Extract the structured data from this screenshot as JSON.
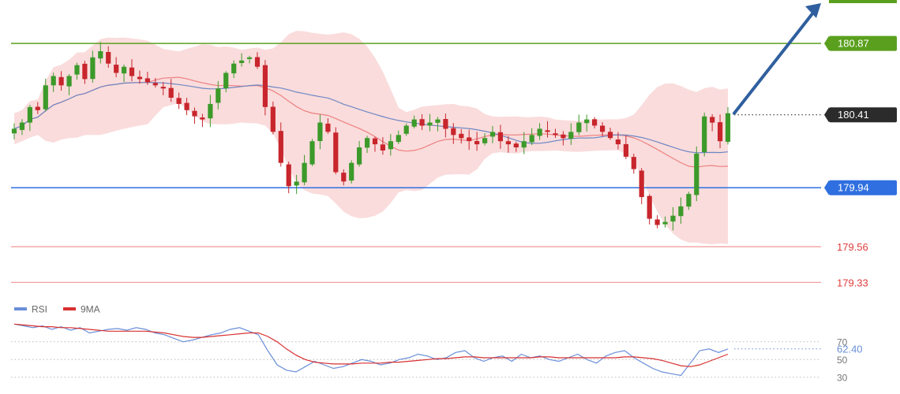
{
  "chart_data": [
    {
      "type": "candlestick",
      "ylim": [
        179.22,
        181.15
      ],
      "colors": {
        "up": "#3c9a2a",
        "down": "#c8252c",
        "band_fill": "#f8d0d0",
        "ma_fast": "#ee8080",
        "ma_slow": "#6d87c4",
        "arrow": "#2f5f9e"
      },
      "levels": [
        {
          "value": 180.87,
          "label": "180.87",
          "color": "#5aa01e",
          "style": "solid-badge"
        },
        {
          "value": 180.41,
          "label": "180.41",
          "color": "#333333",
          "style": "dotted-badge"
        },
        {
          "value": 179.94,
          "label": "179.94",
          "color": "#2f6fe0",
          "style": "solid-badge"
        },
        {
          "value": 179.56,
          "label": "179.56",
          "color": "#f2a0a0",
          "style": "text"
        },
        {
          "value": 179.33,
          "label": "179.33",
          "color": "#f2a0a0",
          "style": "text"
        }
      ],
      "close": [
        180.32,
        180.36,
        180.46,
        180.44,
        180.6,
        180.66,
        180.6,
        180.66,
        180.73,
        180.64,
        180.78,
        180.82,
        180.74,
        180.68,
        180.72,
        180.66,
        180.64,
        180.62,
        180.6,
        180.58,
        180.52,
        180.48,
        180.44,
        180.4,
        180.38,
        180.48,
        180.58,
        180.68,
        180.74,
        180.76,
        180.78,
        180.72,
        180.46,
        180.3,
        180.1,
        179.95,
        179.98,
        180.1,
        180.24,
        180.36,
        180.3,
        180.04,
        179.98,
        180.1,
        180.2,
        180.26,
        180.22,
        180.18,
        180.24,
        180.28,
        180.34,
        180.38,
        180.34,
        180.36,
        180.38,
        180.32,
        180.28,
        180.26,
        180.24,
        180.22,
        180.26,
        180.3,
        180.24,
        180.22,
        180.2,
        180.24,
        180.28,
        180.32,
        180.3,
        180.28,
        180.26,
        180.3,
        180.36,
        180.38,
        180.34,
        180.3,
        180.26,
        180.22,
        180.14,
        180.06,
        179.88,
        179.74,
        179.7,
        179.72,
        179.76,
        179.82,
        179.9,
        180.16,
        180.4,
        180.36,
        180.24,
        180.42
      ]
    },
    {
      "type": "line",
      "legend": [
        "RSI",
        "9MA"
      ],
      "ylim": [
        20,
        100
      ],
      "ticks": [
        {
          "value": 70,
          "label": "70"
        },
        {
          "value": 50,
          "label": "50"
        },
        {
          "value": 30,
          "label": "30"
        }
      ],
      "last_value_label": "62.40",
      "series": [
        {
          "name": "RSI",
          "color": "#6a8fd8",
          "values": [
            90,
            88,
            86,
            88,
            84,
            87,
            83,
            86,
            80,
            82,
            84,
            85,
            83,
            86,
            84,
            80,
            78,
            74,
            70,
            72,
            75,
            78,
            80,
            84,
            86,
            82,
            78,
            60,
            44,
            38,
            36,
            42,
            48,
            44,
            40,
            42,
            46,
            50,
            48,
            44,
            46,
            50,
            52,
            56,
            54,
            50,
            52,
            58,
            60,
            52,
            48,
            52,
            54,
            48,
            56,
            52,
            54,
            50,
            48,
            52,
            56,
            50,
            46,
            54,
            58,
            60,
            52,
            46,
            40,
            36,
            34,
            32,
            46,
            60,
            62,
            58,
            62
          ]
        },
        {
          "name": "9MA",
          "color": "#d83030",
          "values": [
            90,
            89,
            88,
            87,
            87,
            86,
            86,
            85,
            84,
            83,
            82,
            82,
            82,
            82,
            82,
            81,
            80,
            78,
            76,
            75,
            75,
            76,
            77,
            78,
            79,
            80,
            80,
            76,
            70,
            62,
            55,
            50,
            47,
            46,
            45,
            45,
            45,
            46,
            46,
            46,
            47,
            47,
            48,
            49,
            50,
            51,
            51,
            52,
            53,
            53,
            52,
            52,
            52,
            52,
            52,
            52,
            53,
            53,
            52,
            52,
            52,
            52,
            52,
            52,
            52,
            53,
            53,
            52,
            51,
            49,
            46,
            43,
            42,
            44,
            48,
            52,
            56
          ]
        }
      ]
    }
  ]
}
